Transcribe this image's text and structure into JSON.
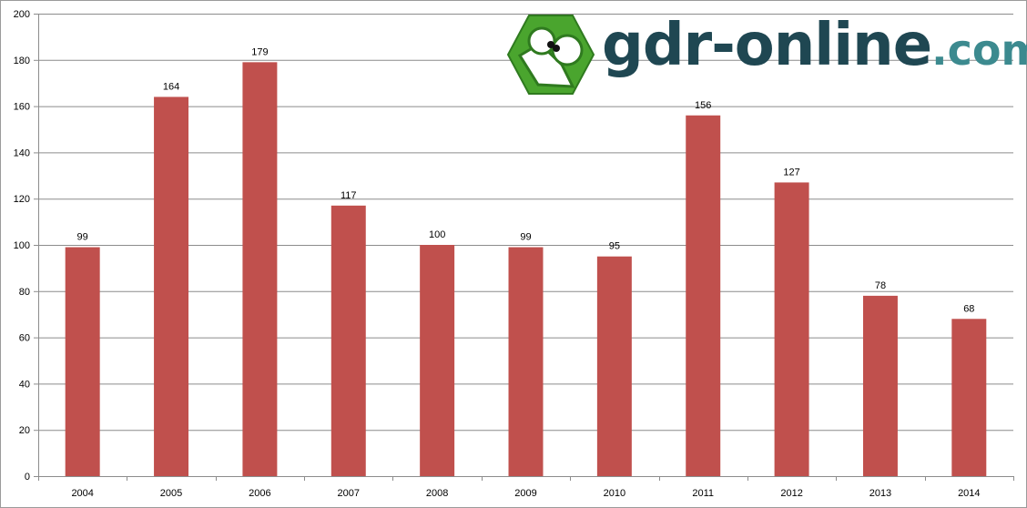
{
  "chart_data": {
    "type": "bar",
    "categories": [
      "2004",
      "2005",
      "2006",
      "2007",
      "2008",
      "2009",
      "2010",
      "2011",
      "2012",
      "2013",
      "2014"
    ],
    "values": [
      99,
      164,
      179,
      117,
      100,
      99,
      95,
      156,
      127,
      78,
      68
    ],
    "data_labels": [
      "99",
      "164",
      "179",
      "117",
      "100",
      "99",
      "95",
      "156",
      "127",
      "78",
      "68"
    ],
    "y_ticks": [
      "0",
      "20",
      "40",
      "60",
      "80",
      "100",
      "120",
      "140",
      "160",
      "180",
      "200"
    ],
    "ylim": [
      0,
      200
    ],
    "grid": true,
    "bar_color": "#c0504d",
    "grid_color": "#8c8c8c",
    "title": "",
    "xlabel": "",
    "ylabel": ""
  },
  "logo": {
    "name": "gdr-online",
    "suffix": ".com",
    "name_color": "#1f4752",
    "suffix_color": "#3c8a8f",
    "badge_color": "#4aa52e"
  }
}
